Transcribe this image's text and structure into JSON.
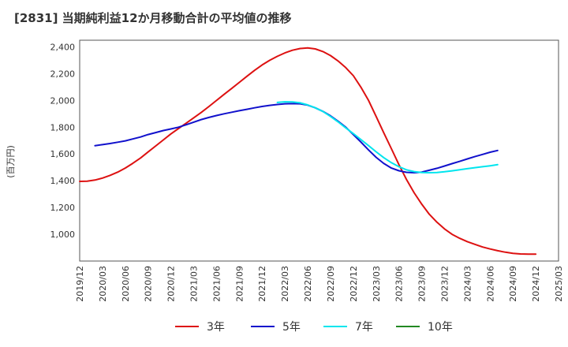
{
  "title": "[2831]  当期純利益12か月移動合計の平均値の推移",
  "chart_data": {
    "type": "line",
    "title": "[2831]  当期純利益12か月移動合計の平均値の推移",
    "ylabel": "(百万円)",
    "xlabel": "",
    "ylim": [
      800,
      2450
    ],
    "yticks": [
      1000,
      1200,
      1400,
      1600,
      1800,
      2000,
      2200,
      2400
    ],
    "ytick_labels": [
      "1,000",
      "1,200",
      "1,400",
      "1,600",
      "1,800",
      "2,000",
      "2,200",
      "2,400"
    ],
    "xticks": [
      "2019/12",
      "2020/03",
      "2020/06",
      "2020/09",
      "2020/12",
      "2021/03",
      "2021/06",
      "2021/09",
      "2021/12",
      "2022/03",
      "2022/06",
      "2022/09",
      "2022/12",
      "2023/03",
      "2023/06",
      "2023/09",
      "2023/12",
      "2024/03",
      "2024/06",
      "2024/09",
      "2024/12",
      "2025/03"
    ],
    "grid": true,
    "legend_position": "bottom",
    "series": [
      {
        "name": "3年",
        "color": "#dd1111",
        "points": [
          [
            0,
            1395
          ],
          [
            0.33,
            1397
          ],
          [
            0.67,
            1405
          ],
          [
            1,
            1420
          ],
          [
            1.33,
            1440
          ],
          [
            1.67,
            1465
          ],
          [
            2,
            1495
          ],
          [
            2.33,
            1530
          ],
          [
            2.67,
            1570
          ],
          [
            3,
            1615
          ],
          [
            3.33,
            1660
          ],
          [
            3.67,
            1705
          ],
          [
            4,
            1750
          ],
          [
            4.33,
            1790
          ],
          [
            4.67,
            1830
          ],
          [
            5,
            1870
          ],
          [
            5.33,
            1910
          ],
          [
            5.67,
            1955
          ],
          [
            6,
            2000
          ],
          [
            6.33,
            2045
          ],
          [
            6.67,
            2090
          ],
          [
            7,
            2135
          ],
          [
            7.33,
            2180
          ],
          [
            7.67,
            2225
          ],
          [
            8,
            2265
          ],
          [
            8.33,
            2300
          ],
          [
            8.67,
            2330
          ],
          [
            9,
            2355
          ],
          [
            9.33,
            2375
          ],
          [
            9.67,
            2388
          ],
          [
            10,
            2392
          ],
          [
            10.33,
            2385
          ],
          [
            10.67,
            2365
          ],
          [
            11,
            2335
          ],
          [
            11.33,
            2295
          ],
          [
            11.67,
            2245
          ],
          [
            12,
            2185
          ],
          [
            12.33,
            2100
          ],
          [
            12.67,
            2000
          ],
          [
            13,
            1880
          ],
          [
            13.33,
            1760
          ],
          [
            13.67,
            1640
          ],
          [
            14,
            1520
          ],
          [
            14.33,
            1410
          ],
          [
            14.67,
            1310
          ],
          [
            15,
            1225
          ],
          [
            15.33,
            1150
          ],
          [
            15.67,
            1090
          ],
          [
            16,
            1040
          ],
          [
            16.33,
            1000
          ],
          [
            16.67,
            970
          ],
          [
            17,
            945
          ],
          [
            17.33,
            925
          ],
          [
            17.67,
            905
          ],
          [
            18,
            890
          ],
          [
            18.33,
            877
          ],
          [
            18.67,
            866
          ],
          [
            19,
            858
          ],
          [
            19.33,
            853
          ],
          [
            19.67,
            851
          ],
          [
            20,
            851
          ]
        ]
      },
      {
        "name": "5年",
        "color": "#1111cc",
        "points": [
          [
            0.67,
            1662
          ],
          [
            1,
            1670
          ],
          [
            1.33,
            1678
          ],
          [
            1.67,
            1688
          ],
          [
            2,
            1698
          ],
          [
            2.33,
            1712
          ],
          [
            2.67,
            1727
          ],
          [
            3,
            1745
          ],
          [
            3.33,
            1760
          ],
          [
            3.67,
            1775
          ],
          [
            4,
            1787
          ],
          [
            4.33,
            1800
          ],
          [
            4.67,
            1818
          ],
          [
            5,
            1838
          ],
          [
            5.33,
            1857
          ],
          [
            5.67,
            1873
          ],
          [
            6,
            1887
          ],
          [
            6.33,
            1900
          ],
          [
            6.67,
            1912
          ],
          [
            7,
            1923
          ],
          [
            7.33,
            1934
          ],
          [
            7.67,
            1945
          ],
          [
            8,
            1955
          ],
          [
            8.33,
            1963
          ],
          [
            8.67,
            1970
          ],
          [
            9,
            1975
          ],
          [
            9.33,
            1976
          ],
          [
            9.67,
            1975
          ],
          [
            10,
            1965
          ],
          [
            10.33,
            1945
          ],
          [
            10.67,
            1918
          ],
          [
            11,
            1885
          ],
          [
            11.33,
            1845
          ],
          [
            11.67,
            1800
          ],
          [
            12,
            1745
          ],
          [
            12.33,
            1690
          ],
          [
            12.67,
            1630
          ],
          [
            13,
            1575
          ],
          [
            13.33,
            1530
          ],
          [
            13.67,
            1495
          ],
          [
            14,
            1475
          ],
          [
            14.33,
            1463
          ],
          [
            14.67,
            1460
          ],
          [
            15,
            1465
          ],
          [
            15.33,
            1478
          ],
          [
            15.67,
            1493
          ],
          [
            16,
            1510
          ],
          [
            16.33,
            1528
          ],
          [
            16.67,
            1545
          ],
          [
            17,
            1563
          ],
          [
            17.33,
            1580
          ],
          [
            17.67,
            1597
          ],
          [
            18,
            1613
          ],
          [
            18.33,
            1626
          ]
        ]
      },
      {
        "name": "7年",
        "color": "#00e5ee",
        "points": [
          [
            8.67,
            1985
          ],
          [
            9,
            1990
          ],
          [
            9.33,
            1989
          ],
          [
            9.67,
            1982
          ],
          [
            10,
            1967
          ],
          [
            10.33,
            1945
          ],
          [
            10.67,
            1917
          ],
          [
            11,
            1880
          ],
          [
            11.33,
            1840
          ],
          [
            11.67,
            1795
          ],
          [
            12,
            1752
          ],
          [
            12.33,
            1708
          ],
          [
            12.67,
            1662
          ],
          [
            13,
            1616
          ],
          [
            13.33,
            1573
          ],
          [
            13.67,
            1535
          ],
          [
            14,
            1505
          ],
          [
            14.33,
            1482
          ],
          [
            14.67,
            1468
          ],
          [
            15,
            1461
          ],
          [
            15.33,
            1460
          ],
          [
            15.67,
            1462
          ],
          [
            16,
            1467
          ],
          [
            16.33,
            1474
          ],
          [
            16.67,
            1482
          ],
          [
            17,
            1490
          ],
          [
            17.33,
            1498
          ],
          [
            17.67,
            1505
          ],
          [
            18,
            1512
          ],
          [
            18.33,
            1520
          ]
        ]
      },
      {
        "name": "10年",
        "color": "#228822",
        "points": []
      }
    ]
  }
}
